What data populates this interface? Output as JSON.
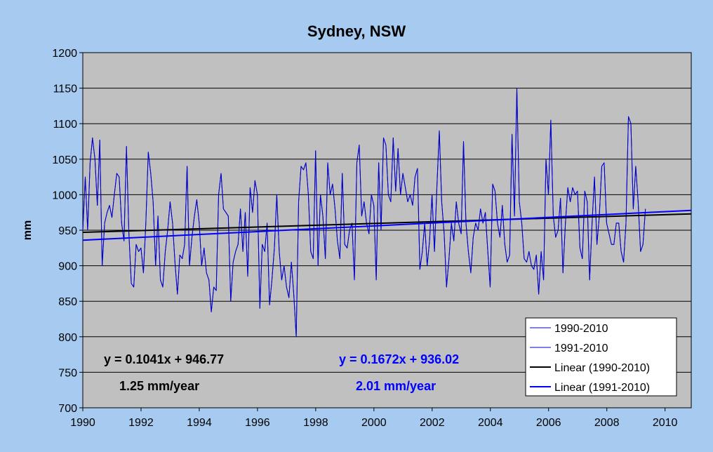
{
  "chart_data": {
    "type": "line",
    "title": "Sydney, NSW",
    "xlabel": "",
    "ylabel": "mm",
    "xlim": [
      1990,
      2010.9
    ],
    "ylim": [
      700,
      1200
    ],
    "xticks": [
      "1990",
      "1992",
      "1994",
      "1996",
      "1998",
      "2000",
      "2002",
      "2004",
      "2006",
      "2008",
      "2010"
    ],
    "yticks": [
      "700",
      "750",
      "800",
      "850",
      "900",
      "950",
      "1000",
      "1050",
      "1100",
      "1150",
      "1200"
    ],
    "grid": "horizontal",
    "legend_position": "bottom-right",
    "colors": {
      "plot_bg": "#c0c0c0",
      "page_bg": "#a6caf0",
      "series": "#0000cc",
      "trend_black": "#000000",
      "trend_blue": "#0000ff"
    },
    "series": [
      {
        "name": "1990-2010",
        "x_start": 1990.0,
        "x_step": 0.0833,
        "values": [
          950,
          1025,
          950,
          1045,
          1080,
          1050,
          985,
          1077,
          900,
          960,
          975,
          985,
          968,
          1000,
          1030,
          1025,
          960,
          935,
          1068,
          945,
          875,
          870,
          930,
          920,
          925,
          890,
          960,
          1060,
          1030,
          990,
          900,
          970,
          880,
          870,
          920,
          950,
          990,
          960,
          905,
          860,
          915,
          910,
          930,
          1040,
          900,
          940,
          970,
          993,
          960,
          900,
          925,
          890,
          880,
          835,
          870,
          865,
          1000,
          1030,
          980,
          975,
          970,
          850,
          905,
          920,
          930,
          980,
          920,
          975,
          885,
          1010,
          975,
          1020,
          1000,
          840,
          930,
          920,
          960,
          845,
          880,
          925,
          1000,
          920,
          880,
          900,
          870,
          855,
          905,
          860,
          800,
          990,
          1040,
          1035,
          1045,
          1000,
          920,
          910,
          1062,
          900,
          1000,
          970,
          910,
          1045,
          1000,
          1015,
          980,
          935,
          910,
          1030,
          930,
          925,
          950,
          960,
          880,
          1045,
          1070,
          970,
          990,
          960,
          945,
          1000,
          985,
          880,
          1045,
          950,
          1080,
          1070,
          1000,
          990,
          1080,
          1005,
          1065,
          1000,
          1030,
          1010,
          990,
          1000,
          985,
          1025,
          1037,
          895,
          920,
          960,
          900,
          935,
          1000,
          920,
          1010,
          1090,
          990,
          945,
          870,
          910,
          960,
          935,
          990,
          960,
          945,
          1075,
          960,
          920,
          890,
          940,
          960,
          950,
          980,
          960,
          975,
          920,
          870,
          1015,
          1005,
          960,
          940,
          985,
          930,
          905,
          915,
          1085,
          970,
          1150,
          990,
          960,
          910,
          905,
          920,
          900,
          895,
          915,
          860,
          920,
          880,
          1050,
          1000,
          1105,
          970,
          940,
          950,
          995,
          890,
          960,
          1010,
          990,
          1010,
          1000,
          1005,
          925,
          910,
          1005,
          990,
          880,
          960,
          1025,
          930,
          970,
          1040,
          1045,
          960,
          945,
          930,
          930,
          960,
          960,
          920,
          905,
          960,
          1110,
          1100,
          980,
          1040,
          990,
          920,
          930,
          980
        ]
      },
      {
        "name": "1991-2010",
        "x_start": 1990.0,
        "x_step": 0.0833,
        "values": [
          950,
          1025,
          950,
          1045,
          1080,
          1050,
          985,
          1077,
          900,
          960,
          975,
          985,
          968,
          1000,
          1030,
          1025,
          960,
          935,
          1068,
          945,
          875,
          870,
          930,
          920,
          925,
          890,
          960,
          1060,
          1030,
          990,
          900,
          970,
          880,
          870,
          920,
          950,
          990,
          960,
          905,
          860,
          915,
          910,
          930,
          1040,
          900,
          940,
          970,
          993,
          960,
          900,
          925,
          890,
          880,
          835,
          870,
          865,
          1000,
          1030,
          980,
          975,
          970,
          850,
          905,
          920,
          930,
          980,
          920,
          975,
          885,
          1010,
          975,
          1020,
          1000,
          840,
          930,
          920,
          960,
          845,
          880,
          925,
          1000,
          920,
          880,
          900,
          870,
          855,
          905,
          860,
          800,
          990,
          1040,
          1035,
          1045,
          1000,
          920,
          910,
          1062,
          900,
          1000,
          970,
          910,
          1045,
          1000,
          1015,
          980,
          935,
          910,
          1030,
          930,
          925,
          950,
          960,
          880,
          1045,
          1070,
          970,
          990,
          960,
          945,
          1000,
          985,
          880,
          1045,
          950,
          1080,
          1070,
          1000,
          990,
          1080,
          1005,
          1065,
          1000,
          1030,
          1010,
          990,
          1000,
          985,
          1025,
          1037,
          895,
          920,
          960,
          900,
          935,
          1000,
          920,
          1010,
          1090,
          990,
          945,
          870,
          910,
          960,
          935,
          990,
          960,
          945,
          1075,
          960,
          920,
          890,
          940,
          960,
          950,
          980,
          960,
          975,
          920,
          870,
          1015,
          1005,
          960,
          940,
          985,
          930,
          905,
          915,
          1085,
          970,
          1150,
          990,
          960,
          910,
          905,
          920,
          900,
          895,
          915,
          860,
          920,
          880,
          1050,
          1000,
          1105,
          970,
          940,
          950,
          995,
          890,
          960,
          1010,
          990,
          1010,
          1000,
          1005,
          925,
          910,
          1005,
          990,
          880,
          960,
          1025,
          930,
          970,
          1040,
          1045,
          960,
          945,
          930,
          930,
          960,
          960,
          920,
          905,
          960,
          1110,
          1100,
          980,
          1040,
          990,
          920,
          930,
          980
        ]
      },
      {
        "name": "Linear (1990-2010)",
        "x": [
          1990,
          2010.9
        ],
        "y": [
          947,
          973
        ]
      },
      {
        "name": "Linear (1991-2010)",
        "x": [
          1990,
          2010.9
        ],
        "y": [
          936,
          978
        ]
      }
    ],
    "annotations": [
      {
        "text": "y = 0.1041x + 946.77",
        "color": "#000000"
      },
      {
        "text": "1.25 mm/year",
        "color": "#000000"
      },
      {
        "text": "y = 0.1672x + 936.02",
        "color": "#0000ff"
      },
      {
        "text": "2.01 mm/year",
        "color": "#0000ff"
      }
    ]
  }
}
